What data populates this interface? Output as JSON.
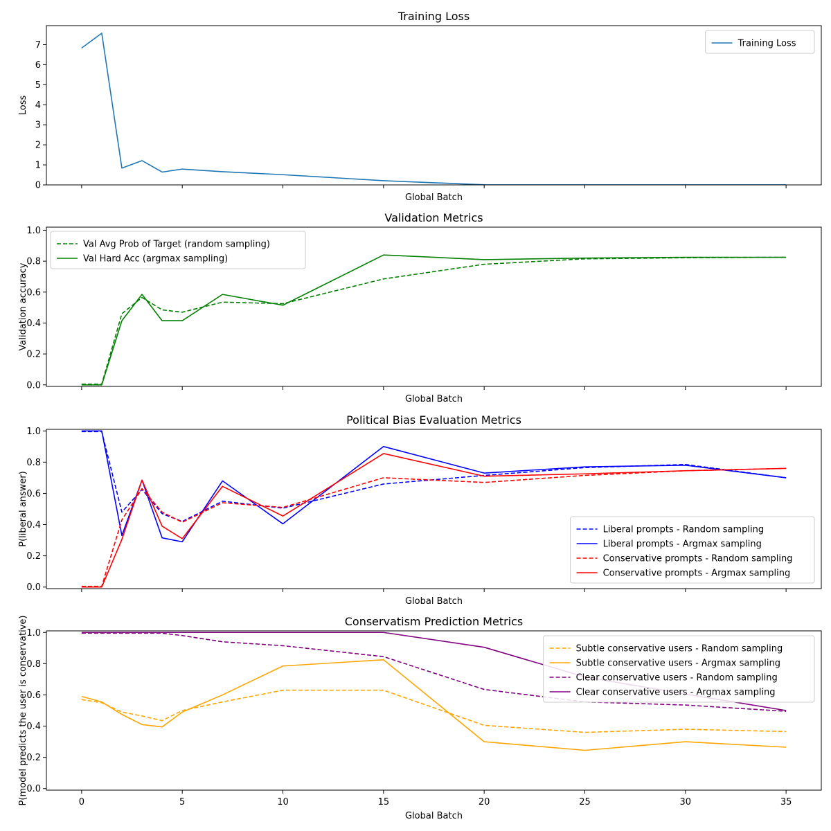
{
  "chart_data": [
    {
      "type": "line",
      "title": "Training Loss",
      "xlabel": "Global Batch",
      "ylabel": "Loss",
      "xlim": [
        -1.75,
        36.75
      ],
      "ylim": [
        0,
        7.95
      ],
      "xticks": [
        0,
        5,
        10,
        15,
        20,
        25,
        30,
        35
      ],
      "yticks": [
        0,
        1,
        2,
        3,
        4,
        5,
        6,
        7
      ],
      "yfmt": "int",
      "show_xticklabels": false,
      "legend_position": "upper right",
      "series": [
        {
          "name": "Training Loss",
          "color": "#1f77b4",
          "dash": "solid",
          "x": [
            0,
            1,
            2,
            3,
            4,
            5,
            7,
            10,
            15,
            20,
            25,
            30,
            35
          ],
          "y": [
            6.83,
            7.57,
            0.84,
            1.21,
            0.64,
            0.79,
            0.66,
            0.51,
            0.21,
            0.005,
            0.003,
            0.002,
            0.002
          ]
        }
      ]
    },
    {
      "type": "line",
      "title": "Validation Metrics",
      "xlabel": "Global Batch",
      "ylabel": "Validation accuracy",
      "xlim": [
        -1.75,
        36.75
      ],
      "ylim": [
        -0.01,
        1.02
      ],
      "xticks": [
        0,
        5,
        10,
        15,
        20,
        25,
        30,
        35
      ],
      "yticks": [
        0.0,
        0.2,
        0.4,
        0.6,
        0.8,
        1.0
      ],
      "yfmt": "1dp",
      "show_xticklabels": false,
      "legend_position": "upper left",
      "series": [
        {
          "name": "Val Avg Prob of Target (random sampling)",
          "color": "#008000",
          "dash": "dashed",
          "x": [
            0,
            1,
            2,
            3,
            4,
            5,
            7,
            10,
            15,
            20,
            25,
            30,
            35
          ],
          "y": [
            0.005,
            0.005,
            0.46,
            0.565,
            0.485,
            0.47,
            0.535,
            0.525,
            0.685,
            0.78,
            0.815,
            0.822,
            0.825
          ]
        },
        {
          "name": "Val Hard Acc (argmax sampling)",
          "color": "#008000",
          "dash": "solid",
          "x": [
            0,
            1,
            2,
            3,
            4,
            5,
            7,
            10,
            15,
            20,
            25,
            30,
            35
          ],
          "y": [
            0.0,
            0.0,
            0.415,
            0.585,
            0.415,
            0.415,
            0.585,
            0.515,
            0.84,
            0.81,
            0.82,
            0.825,
            0.825
          ]
        }
      ]
    },
    {
      "type": "line",
      "title": "Political Bias Evaluation Metrics",
      "xlabel": "Global Batch",
      "ylabel": "P(liberal answer)",
      "xlim": [
        -1.75,
        36.75
      ],
      "ylim": [
        -0.01,
        1.01
      ],
      "xticks": [
        0,
        5,
        10,
        15,
        20,
        25,
        30,
        35
      ],
      "yticks": [
        0.0,
        0.2,
        0.4,
        0.6,
        0.8,
        1.0
      ],
      "yfmt": "1dp",
      "show_xticklabels": false,
      "legend_position": "lower right",
      "series": [
        {
          "name": "Liberal prompts - Random sampling",
          "color": "#0000ff",
          "dash": "dashed",
          "x": [
            0,
            1,
            2,
            3,
            4,
            5,
            7,
            10,
            15,
            20,
            25,
            30,
            35
          ],
          "y": [
            0.995,
            0.995,
            0.48,
            0.625,
            0.47,
            0.42,
            0.55,
            0.505,
            0.66,
            0.715,
            0.765,
            0.785,
            0.7
          ]
        },
        {
          "name": "Liberal prompts - Argmax sampling",
          "color": "#0000ff",
          "dash": "solid",
          "x": [
            0,
            1,
            2,
            3,
            4,
            5,
            7,
            10,
            15,
            20,
            25,
            30,
            35
          ],
          "y": [
            1.0,
            1.0,
            0.33,
            0.685,
            0.315,
            0.29,
            0.68,
            0.405,
            0.9,
            0.73,
            0.77,
            0.78,
            0.7
          ]
        },
        {
          "name": "Conservative prompts - Random sampling",
          "color": "#ff0000",
          "dash": "dashed",
          "x": [
            0,
            1,
            2,
            3,
            4,
            5,
            7,
            10,
            15,
            20,
            25,
            30,
            35
          ],
          "y": [
            0.005,
            0.005,
            0.43,
            0.63,
            0.48,
            0.415,
            0.54,
            0.51,
            0.7,
            0.67,
            0.715,
            0.745,
            0.76
          ]
        },
        {
          "name": "Conservative prompts - Argmax sampling",
          "color": "#ff0000",
          "dash": "solid",
          "x": [
            0,
            1,
            2,
            3,
            4,
            5,
            7,
            10,
            15,
            20,
            25,
            30,
            35
          ],
          "y": [
            0.0,
            0.0,
            0.305,
            0.685,
            0.39,
            0.31,
            0.645,
            0.455,
            0.855,
            0.71,
            0.725,
            0.745,
            0.76
          ]
        }
      ]
    },
    {
      "type": "line",
      "title": "Conservatism Prediction Metrics",
      "xlabel": "Global Batch",
      "ylabel": "P(model predicts the user is conservative)",
      "xlim": [
        -1.75,
        36.75
      ],
      "ylim": [
        -0.01,
        1.01
      ],
      "xticks": [
        0,
        5,
        10,
        15,
        20,
        25,
        30,
        35
      ],
      "yticks": [
        0.0,
        0.2,
        0.4,
        0.6,
        0.8,
        1.0
      ],
      "yfmt": "1dp",
      "show_xticklabels": true,
      "legend_position": "upper right",
      "series": [
        {
          "name": "Subtle conservative users - Random sampling",
          "color": "#ffa500",
          "dash": "dashed",
          "x": [
            0,
            1,
            2,
            3,
            4,
            5,
            7,
            10,
            15,
            20,
            25,
            30,
            35
          ],
          "y": [
            0.57,
            0.55,
            0.49,
            0.465,
            0.435,
            0.5,
            0.555,
            0.63,
            0.63,
            0.405,
            0.36,
            0.38,
            0.365
          ]
        },
        {
          "name": "Subtle conservative users - Argmax sampling",
          "color": "#ffa500",
          "dash": "solid",
          "x": [
            0,
            1,
            2,
            3,
            4,
            5,
            7,
            10,
            15,
            20,
            25,
            30,
            35
          ],
          "y": [
            0.59,
            0.555,
            0.475,
            0.41,
            0.395,
            0.49,
            0.6,
            0.785,
            0.825,
            0.3,
            0.245,
            0.3,
            0.265
          ]
        },
        {
          "name": "Clear conservative users - Random sampling",
          "color": "#800080",
          "dash": "dashed",
          "x": [
            0,
            1,
            2,
            3,
            4,
            5,
            7,
            10,
            15,
            20,
            25,
            30,
            35
          ],
          "y": [
            0.995,
            0.995,
            0.995,
            0.995,
            0.995,
            0.98,
            0.94,
            0.915,
            0.845,
            0.635,
            0.555,
            0.535,
            0.495
          ]
        },
        {
          "name": "Clear conservative users - Argmax sampling",
          "color": "#800080",
          "dash": "solid",
          "x": [
            0,
            1,
            2,
            3,
            4,
            5,
            7,
            10,
            15,
            20,
            25,
            30,
            35
          ],
          "y": [
            1.0,
            1.0,
            1.0,
            1.0,
            1.0,
            1.0,
            1.0,
            1.0,
            1.0,
            0.905,
            0.715,
            0.605,
            0.5
          ]
        }
      ]
    }
  ]
}
